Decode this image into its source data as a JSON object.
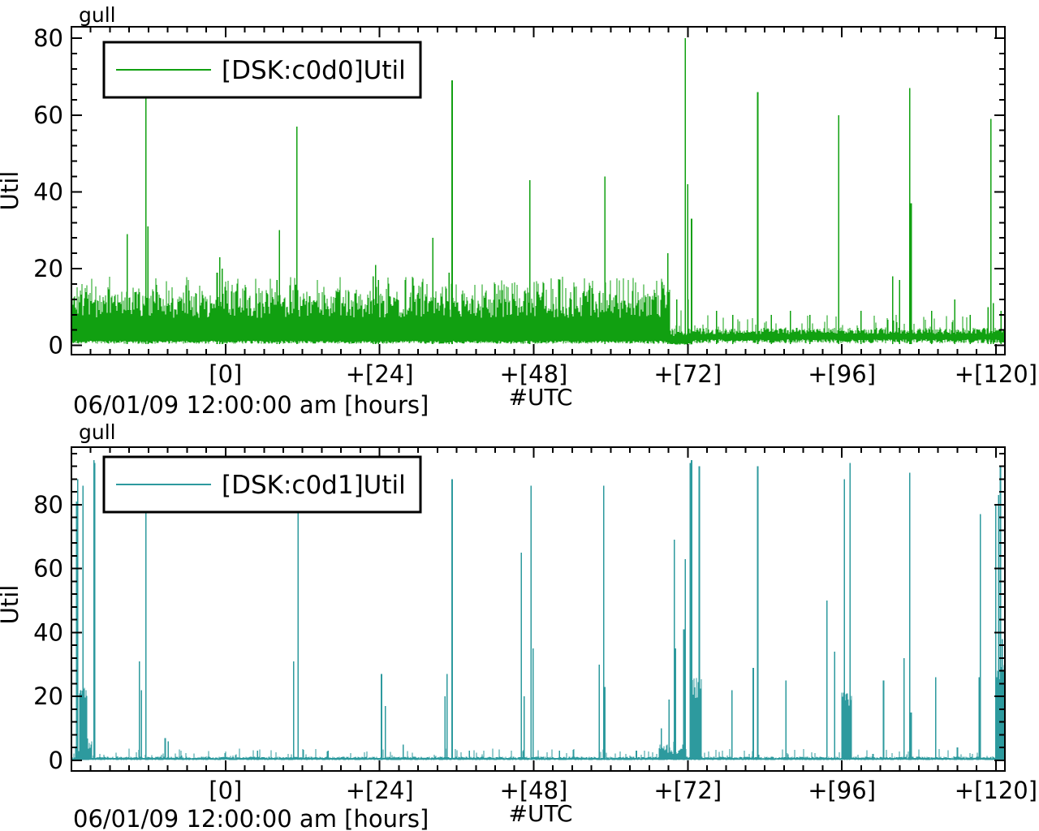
{
  "page": {
    "background": "#ffffff"
  },
  "chart_data": [
    {
      "type": "line",
      "title": "gull",
      "ylabel": "Util",
      "xlabel": "06/01/09 12:00:00 am [hours]",
      "x_annotation": "#UTC",
      "legend": {
        "label": "[DSK:c0d0]Util",
        "position": "top-left"
      },
      "series_name": "[DSK:c0d0]Util",
      "color": "#11a011",
      "grid": false,
      "xlim": [
        -24,
        121.4
      ],
      "ylim": [
        0,
        83
      ],
      "x_minor_step_hours": 3,
      "y_minor_step": 4,
      "x_ticks": [
        {
          "t": 0,
          "label": "[0]"
        },
        {
          "t": 24,
          "label": "+[24]"
        },
        {
          "t": 48,
          "label": "+[48]"
        },
        {
          "t": 72,
          "label": "+[72]"
        },
        {
          "t": 96,
          "label": "+[96]"
        },
        {
          "t": 120,
          "label": "+[120]"
        }
      ],
      "y_ticks": [
        {
          "v": 0,
          "label": "0"
        },
        {
          "v": 20,
          "label": "20"
        },
        {
          "v": 40,
          "label": "40"
        },
        {
          "v": 60,
          "label": "60"
        },
        {
          "v": 80,
          "label": "80"
        }
      ],
      "noise_bands": [
        {
          "from": -24,
          "to": 69.2,
          "lo": 1.2,
          "hi": 14.5,
          "tip": 3.5,
          "tip_chance": 0.15
        },
        {
          "from": 69.2,
          "to": 72.6,
          "lo": 0.6,
          "hi": 4.5,
          "tip": 9.0,
          "tip_chance": 0.25
        },
        {
          "from": 72.6,
          "to": 121.4,
          "lo": 1.6,
          "hi": 4.6,
          "tip": 3.5,
          "tip_chance": 0.12
        }
      ],
      "blocks": [],
      "spikes": [
        [
          -15.3,
          29
        ],
        [
          -12.4,
          75
        ],
        [
          -12.1,
          31
        ],
        [
          -1.3,
          19
        ],
        [
          -0.9,
          23
        ],
        [
          -0.5,
          20
        ],
        [
          8.0,
          17
        ],
        [
          8.4,
          30
        ],
        [
          11.1,
          57
        ],
        [
          23.0,
          18
        ],
        [
          23.4,
          21
        ],
        [
          23.8,
          17
        ],
        [
          32.3,
          28
        ],
        [
          34.8,
          19
        ],
        [
          35.3,
          69
        ],
        [
          47.4,
          43
        ],
        [
          59.1,
          44
        ],
        [
          68.9,
          24
        ],
        [
          70.3,
          12
        ],
        [
          71.6,
          80
        ],
        [
          72.0,
          42
        ],
        [
          72.6,
          33
        ],
        [
          76.5,
          9
        ],
        [
          79.0,
          8
        ],
        [
          82.9,
          66
        ],
        [
          85.0,
          8
        ],
        [
          88.0,
          9
        ],
        [
          91.0,
          8
        ],
        [
          95.5,
          60
        ],
        [
          99.0,
          9
        ],
        [
          103.9,
          18
        ],
        [
          105.0,
          17
        ],
        [
          106.6,
          67
        ],
        [
          106.8,
          37
        ],
        [
          110.0,
          9
        ],
        [
          113.6,
          12
        ],
        [
          116.0,
          8
        ],
        [
          118.8,
          10
        ],
        [
          119.2,
          59
        ],
        [
          119.6,
          11
        ],
        [
          120.8,
          9
        ]
      ]
    },
    {
      "type": "line",
      "title": "gull",
      "ylabel": "Util",
      "xlabel": "06/01/09 12:00:00 am [hours]",
      "x_annotation": "#UTC",
      "legend": {
        "label": "[DSK:c0d1]Util",
        "position": "top-left"
      },
      "series_name": "[DSK:c0d1]Util",
      "color": "#2d9a9e",
      "grid": false,
      "xlim": [
        -24,
        121.4
      ],
      "ylim": [
        0,
        98
      ],
      "x_minor_step_hours": 3,
      "y_minor_step": 4,
      "x_ticks": [
        {
          "t": 0,
          "label": "[0]"
        },
        {
          "t": 24,
          "label": "+[24]"
        },
        {
          "t": 48,
          "label": "+[48]"
        },
        {
          "t": 72,
          "label": "+[72]"
        },
        {
          "t": 96,
          "label": "+[96]"
        },
        {
          "t": 120,
          "label": "+[120]"
        }
      ],
      "y_ticks": [
        {
          "v": 0,
          "label": "0"
        },
        {
          "v": 20,
          "label": "20"
        },
        {
          "v": 40,
          "label": "40"
        },
        {
          "v": 60,
          "label": "60"
        },
        {
          "v": 80,
          "label": "80"
        }
      ],
      "noise_bands": [
        {
          "from": -24,
          "to": 121.4,
          "lo": 0.25,
          "hi": 1.2,
          "tip": 2.5,
          "tip_chance": 0.1
        },
        {
          "from": -23.4,
          "to": -20.9,
          "lo": 0.3,
          "hi": 5.0,
          "tip": 2.0,
          "tip_chance": 0.3
        },
        {
          "from": 67.6,
          "to": 71.7,
          "lo": 0.3,
          "hi": 4.2,
          "tip": 3.0,
          "tip_chance": 0.3
        },
        {
          "from": 120.0,
          "to": 121.4,
          "lo": 0.5,
          "hi": 9.0,
          "tip": 8.0,
          "tip_chance": 0.3
        }
      ],
      "blocks": [
        {
          "from": -22.75,
          "to": -21.55,
          "lo": 17,
          "hi": 23
        },
        {
          "from": 72.35,
          "to": 74.15,
          "lo": 19,
          "hi": 26
        },
        {
          "from": 95.95,
          "to": 97.45,
          "lo": 17,
          "hi": 22
        },
        {
          "from": 120.1,
          "to": 121.4,
          "lo": 22,
          "hi": 30
        }
      ],
      "spikes": [
        [
          -23.2,
          81
        ],
        [
          -23.0,
          88
        ],
        [
          -22.6,
          22
        ],
        [
          -22.2,
          86
        ],
        [
          -20.5,
          94
        ],
        [
          -20.4,
          93
        ],
        [
          -13.4,
          31
        ],
        [
          -13.1,
          22
        ],
        [
          -12.4,
          85
        ],
        [
          -9.4,
          7
        ],
        [
          -8.9,
          6
        ],
        [
          5.0,
          3
        ],
        [
          10.6,
          31
        ],
        [
          11.3,
          85
        ],
        [
          16.0,
          3
        ],
        [
          24.3,
          27
        ],
        [
          24.9,
          17
        ],
        [
          27.7,
          5
        ],
        [
          34.2,
          20
        ],
        [
          34.5,
          27
        ],
        [
          35.3,
          88
        ],
        [
          38.0,
          3
        ],
        [
          46.1,
          65
        ],
        [
          46.5,
          20
        ],
        [
          47.6,
          86
        ],
        [
          47.9,
          35
        ],
        [
          52.0,
          3
        ],
        [
          58.2,
          30
        ],
        [
          58.9,
          86
        ],
        [
          59.1,
          23
        ],
        [
          64.0,
          3
        ],
        [
          67.9,
          10
        ],
        [
          69.1,
          19
        ],
        [
          69.9,
          69
        ],
        [
          70.1,
          35
        ],
        [
          71.4,
          41
        ],
        [
          71.6,
          63
        ],
        [
          72.4,
          93
        ],
        [
          72.6,
          94
        ],
        [
          73.8,
          92
        ],
        [
          78.9,
          22
        ],
        [
          82.2,
          29
        ],
        [
          82.9,
          92
        ],
        [
          87.3,
          25
        ],
        [
          93.7,
          50
        ],
        [
          94.9,
          34
        ],
        [
          96.4,
          88
        ],
        [
          97.3,
          93
        ],
        [
          102.5,
          25
        ],
        [
          105.7,
          32
        ],
        [
          106.6,
          90
        ],
        [
          106.8,
          15
        ],
        [
          110.6,
          26
        ],
        [
          114.0,
          4
        ],
        [
          117.4,
          26
        ],
        [
          117.6,
          77
        ],
        [
          120.0,
          80
        ],
        [
          120.4,
          83
        ],
        [
          120.7,
          92
        ],
        [
          121.0,
          38
        ]
      ]
    }
  ]
}
